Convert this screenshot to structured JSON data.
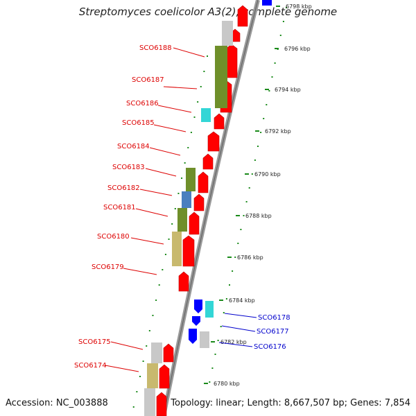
{
  "title": "Streptomyces coelicolor A3(2), complete genome",
  "accession_text": "Accession: NC_003888",
  "topology_text": "Topology: linear; Length: 8,667,507 bp; Genes: 7,854",
  "colors": {
    "cds_forward": "#ff0000",
    "cds_reverse": "#0000ff",
    "backbone": "#888888",
    "tick": "#1a8a1a",
    "label_left": "#dd0000",
    "label_right": "#0000cc",
    "cat_olive": "#6f8f2a",
    "cat_cyan": "#33d6d6",
    "cat_blue": "#4a7fbf",
    "cat_khaki": "#c8b96e",
    "cat_grey": "#c8c8c8"
  },
  "kbp_labels": [
    "6798 kbp",
    "6796 kbp",
    "6794 kbp",
    "6792 kbp",
    "6790 kbp",
    "6788 kbp",
    "6786 kbp",
    "6784 kbp",
    "6782 kbp",
    "6780 kbp"
  ],
  "left_genes": [
    "SCO6188",
    "SCO6187",
    "SCO6186",
    "SCO6185",
    "SCO6184",
    "SCO6183",
    "SCO6182",
    "SCO6181",
    "SCO6180",
    "SCO6179",
    "SCO6175",
    "SCO6174"
  ],
  "right_genes": [
    "SCO6178",
    "SCO6177",
    "SCO6176"
  ]
}
